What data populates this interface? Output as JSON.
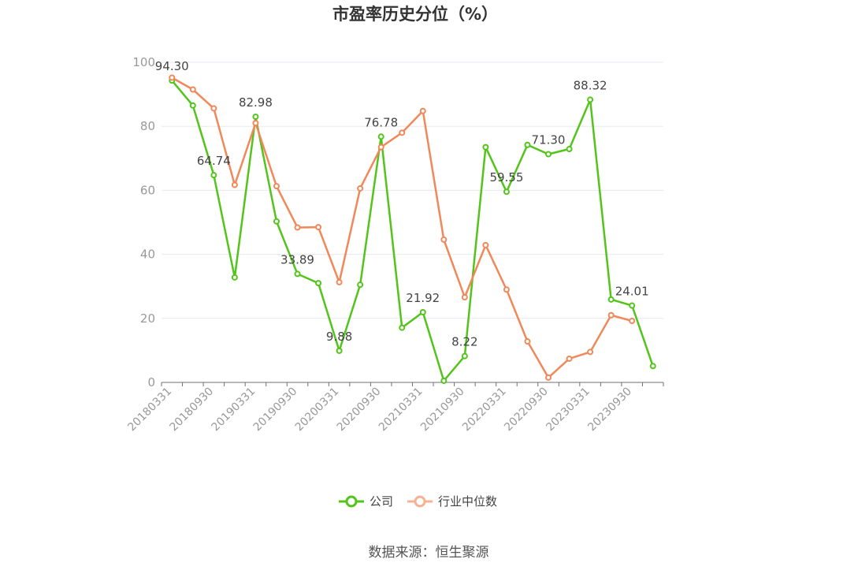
{
  "chart_data": {
    "type": "line",
    "title": "市盈率历史分位（%）",
    "ylim": [
      0,
      100
    ],
    "yticks": [
      0,
      20,
      40,
      60,
      80,
      100
    ],
    "grid": true,
    "legend_position": "bottom",
    "x_tick_labels": [
      "20180331",
      "20180930",
      "20190331",
      "20190930",
      "20200331",
      "20200930",
      "20210331",
      "20210930",
      "20220331",
      "20220930",
      "20230331",
      "20230930"
    ],
    "x": [
      "20180331",
      "20180630",
      "20180930",
      "20181231",
      "20190331",
      "20190630",
      "20190930",
      "20191231",
      "20200331",
      "20200630",
      "20200930",
      "20201231",
      "20210331",
      "20210630",
      "20210930",
      "20211231",
      "20220331",
      "20220630",
      "20220930",
      "20221231",
      "20230331",
      "20230630",
      "20230930",
      "20231231"
    ],
    "series": [
      {
        "name": "公司",
        "color": "#52c41a",
        "values": [
          94.3,
          86.5,
          64.74,
          32.8,
          82.98,
          50.3,
          33.89,
          31.0,
          9.88,
          30.5,
          76.78,
          17.1,
          21.92,
          0.5,
          8.22,
          73.5,
          59.55,
          74.2,
          71.3,
          72.9,
          88.32,
          25.9,
          24.01,
          5.1
        ]
      },
      {
        "name": "行业中位数",
        "color": "#f0885a",
        "values": [
          95.2,
          91.5,
          85.6,
          61.7,
          81.0,
          61.3,
          48.4,
          48.5,
          31.3,
          60.6,
          73.5,
          78.0,
          84.8,
          44.6,
          26.6,
          42.9,
          29.0,
          12.8,
          1.5,
          7.4,
          9.5,
          21.0,
          19.2,
          null
        ]
      }
    ],
    "data_labels": [
      {
        "series": 0,
        "index": 0,
        "text": "94.30"
      },
      {
        "series": 0,
        "index": 2,
        "text": "64.74"
      },
      {
        "series": 0,
        "index": 4,
        "text": "82.98"
      },
      {
        "series": 0,
        "index": 6,
        "text": "33.89"
      },
      {
        "series": 0,
        "index": 8,
        "text": "9.88"
      },
      {
        "series": 0,
        "index": 10,
        "text": "76.78"
      },
      {
        "series": 0,
        "index": 12,
        "text": "21.92"
      },
      {
        "series": 0,
        "index": 14,
        "text": "8.22"
      },
      {
        "series": 0,
        "index": 16,
        "text": "59.55"
      },
      {
        "series": 0,
        "index": 18,
        "text": "71.30"
      },
      {
        "series": 0,
        "index": 20,
        "text": "88.32"
      },
      {
        "series": 0,
        "index": 22,
        "text": "24.01"
      }
    ]
  },
  "footer": {
    "source": "数据来源：恒生聚源"
  }
}
